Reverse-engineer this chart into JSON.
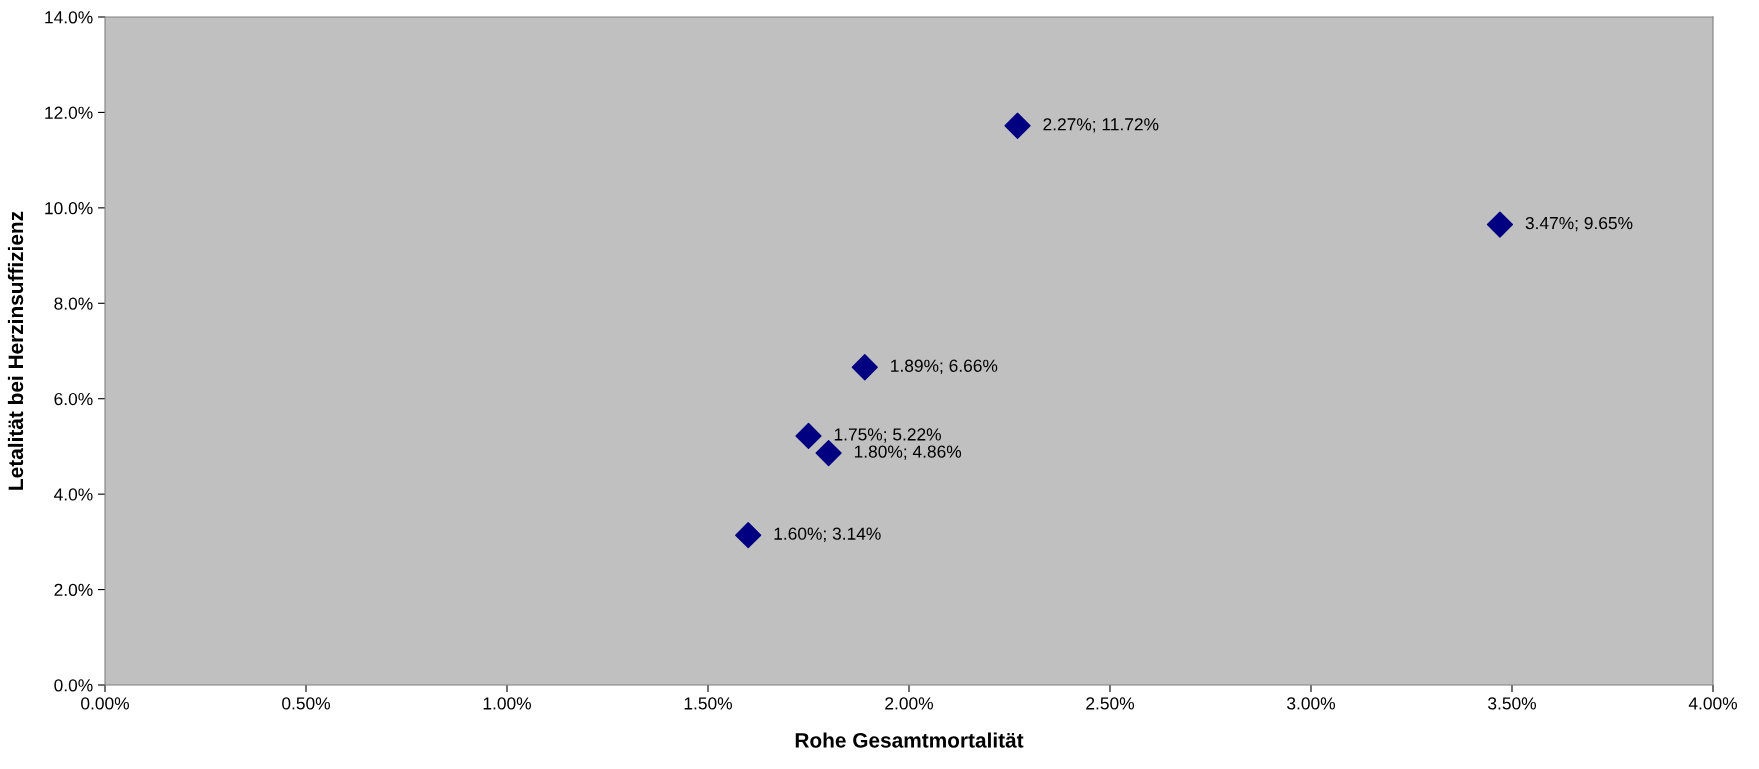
{
  "chart_data": {
    "type": "scatter",
    "xlabel": "Rohe Gesamtmortalität",
    "ylabel": "Letalität bei Herzinsuffizienz",
    "x": [
      1.6,
      1.75,
      1.8,
      1.89,
      2.27,
      3.47
    ],
    "values": [
      3.14,
      5.22,
      4.86,
      6.66,
      11.72,
      9.65
    ],
    "value_labels": [
      "1.60%; 3.14%",
      "1.75%; 5.22%",
      "1.80%; 4.86%",
      "1.89%; 6.66%",
      "2.27%; 11.72%",
      "3.47%; 9.65%"
    ],
    "color": "#000080",
    "marker": "diamond",
    "grid": false,
    "xlim": [
      0,
      4
    ],
    "ylim": [
      0,
      14
    ],
    "xticks": [
      {
        "value": 0,
        "label": "0.00%"
      },
      {
        "value": 0.5,
        "label": "0.50%"
      },
      {
        "value": 1,
        "label": "1.00%"
      },
      {
        "value": 1.5,
        "label": "1.50%"
      },
      {
        "value": 2,
        "label": "2.00%"
      },
      {
        "value": 2.5,
        "label": "2.50%"
      },
      {
        "value": 3,
        "label": "3.00%"
      },
      {
        "value": 3.5,
        "label": "3.50%"
      },
      {
        "value": 4,
        "label": "4.00%"
      }
    ],
    "yticks": [
      {
        "value": 0,
        "label": "0.0%"
      },
      {
        "value": 2,
        "label": "2.0%"
      },
      {
        "value": 4,
        "label": "4.0%"
      },
      {
        "value": 6,
        "label": "6.0%"
      },
      {
        "value": 8,
        "label": "8.0%"
      },
      {
        "value": 10,
        "label": "10.0%"
      },
      {
        "value": 12,
        "label": "12.0%"
      },
      {
        "value": 14,
        "label": "14.0%"
      }
    ]
  }
}
